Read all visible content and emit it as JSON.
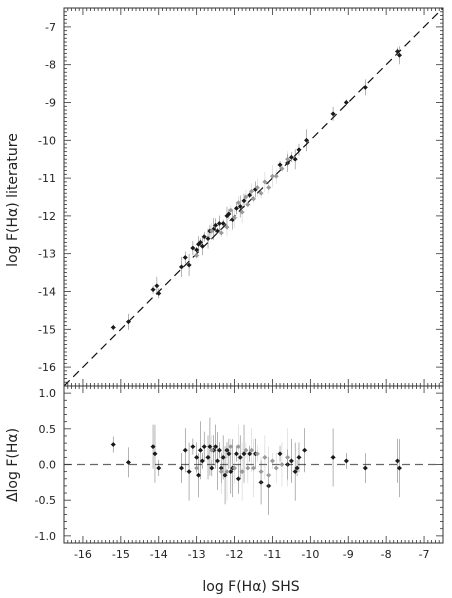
{
  "chart_data": [
    {
      "id": "top",
      "type": "scatter",
      "xlabel": "",
      "ylabel": "log F(Hα) literature",
      "xlim": [
        -16.5,
        -6.5
      ],
      "ylim": [
        -16.5,
        -6.5
      ],
      "x_ticks": [
        -16,
        -15,
        -14,
        -13,
        -12,
        -11,
        -10,
        -9,
        -8,
        -7
      ],
      "y_ticks": [
        -16,
        -15,
        -14,
        -13,
        -12,
        -11,
        -10,
        -9,
        -8,
        -7
      ],
      "show_x_tick_labels": false,
      "grid": false,
      "reference_line": {
        "style": "dashed",
        "points": [
          [
            -16.5,
            -16.5
          ],
          [
            -6.5,
            -6.5
          ]
        ]
      },
      "series": [
        {
          "color": "#1a1a1a",
          "points": [
            [
              -15.2,
              -14.95
            ],
            [
              -14.8,
              -14.8
            ],
            [
              -14.15,
              -13.95
            ],
            [
              -14.05,
              -13.85
            ],
            [
              -14.0,
              -14.05
            ],
            [
              -13.4,
              -13.35
            ],
            [
              -13.3,
              -13.1
            ],
            [
              -13.2,
              -13.3
            ],
            [
              -13.1,
              -12.85
            ],
            [
              -13.0,
              -12.9
            ],
            [
              -12.95,
              -12.75
            ],
            [
              -12.9,
              -12.7
            ],
            [
              -12.85,
              -12.8
            ],
            [
              -12.8,
              -12.55
            ],
            [
              -12.7,
              -12.6
            ],
            [
              -12.65,
              -12.4
            ],
            [
              -12.55,
              -12.35
            ],
            [
              -12.5,
              -12.25
            ],
            [
              -12.45,
              -12.4
            ],
            [
              -12.4,
              -12.2
            ],
            [
              -12.3,
              -12.2
            ],
            [
              -12.2,
              -12.0
            ],
            [
              -12.15,
              -11.95
            ],
            [
              -12.05,
              -12.1
            ],
            [
              -11.95,
              -11.8
            ],
            [
              -11.85,
              -11.75
            ],
            [
              -11.75,
              -11.6
            ],
            [
              -11.6,
              -11.45
            ],
            [
              -11.45,
              -11.3
            ],
            [
              -10.8,
              -10.65
            ],
            [
              -10.6,
              -10.6
            ],
            [
              -10.5,
              -10.45
            ],
            [
              -10.4,
              -10.5
            ],
            [
              -10.3,
              -10.25
            ],
            [
              -10.1,
              -10.0
            ],
            [
              -9.4,
              -9.3
            ],
            [
              -9.05,
              -9.0
            ],
            [
              -8.55,
              -8.6
            ],
            [
              -7.7,
              -7.65
            ],
            [
              -7.65,
              -7.75
            ]
          ]
        },
        {
          "color": "#9a9a9a",
          "points": [
            [
              -13.0,
              -13.05
            ],
            [
              -12.6,
              -12.4
            ],
            [
              -12.35,
              -12.45
            ],
            [
              -12.2,
              -12.3
            ],
            [
              -12.1,
              -11.85
            ],
            [
              -12.0,
              -12.05
            ],
            [
              -11.9,
              -11.65
            ],
            [
              -11.8,
              -11.9
            ],
            [
              -11.7,
              -11.5
            ],
            [
              -11.65,
              -11.7
            ],
            [
              -11.55,
              -11.35
            ],
            [
              -11.5,
              -11.55
            ],
            [
              -11.4,
              -11.25
            ],
            [
              -11.3,
              -11.4
            ],
            [
              -11.2,
              -11.1
            ],
            [
              -11.1,
              -11.25
            ],
            [
              -11.0,
              -10.95
            ],
            [
              -10.9,
              -10.95
            ],
            [
              -10.75,
              -10.75
            ],
            [
              -10.6,
              -10.5
            ]
          ]
        }
      ]
    },
    {
      "id": "bottom",
      "type": "scatter",
      "xlabel": "log F(Hα) SHS",
      "ylabel": "Δlog F(Hα)",
      "xlim": [
        -16.5,
        -6.5
      ],
      "ylim": [
        -1.1,
        1.1
      ],
      "x_ticks": [
        -16,
        -15,
        -14,
        -13,
        -12,
        -11,
        -10,
        -9,
        -8,
        -7
      ],
      "y_ticks": [
        -1.0,
        -0.5,
        0.0,
        0.5,
        1.0
      ],
      "show_x_tick_labels": true,
      "grid": false,
      "reference_line": {
        "style": "dashed",
        "points": [
          [
            -16.5,
            0.0
          ],
          [
            -6.5,
            0.0
          ]
        ]
      },
      "series": [
        {
          "color": "#1a1a1a",
          "points": [
            [
              -15.2,
              0.28
            ],
            [
              -14.8,
              0.03
            ],
            [
              -14.15,
              0.25
            ],
            [
              -14.1,
              0.15
            ],
            [
              -14.0,
              -0.05
            ],
            [
              -13.4,
              -0.05
            ],
            [
              -13.3,
              0.2
            ],
            [
              -13.2,
              -0.1
            ],
            [
              -13.1,
              0.25
            ],
            [
              -13.0,
              0.1
            ],
            [
              -12.95,
              -0.15
            ],
            [
              -12.9,
              0.2
            ],
            [
              -12.85,
              0.05
            ],
            [
              -12.8,
              0.25
            ],
            [
              -12.7,
              0.1
            ],
            [
              -12.65,
              0.25
            ],
            [
              -12.6,
              -0.05
            ],
            [
              -12.55,
              0.2
            ],
            [
              -12.5,
              0.25
            ],
            [
              -12.45,
              0.05
            ],
            [
              -12.4,
              0.2
            ],
            [
              -12.35,
              -0.05
            ],
            [
              -12.3,
              0.1
            ],
            [
              -12.25,
              -0.15
            ],
            [
              -12.2,
              0.2
            ],
            [
              -12.15,
              0.15
            ],
            [
              -12.1,
              -0.1
            ],
            [
              -12.05,
              -0.05
            ],
            [
              -11.95,
              0.15
            ],
            [
              -11.9,
              -0.2
            ],
            [
              -11.85,
              0.1
            ],
            [
              -11.75,
              0.15
            ],
            [
              -11.6,
              0.15
            ],
            [
              -11.45,
              0.15
            ],
            [
              -11.3,
              -0.25
            ],
            [
              -11.1,
              -0.3
            ],
            [
              -10.8,
              0.15
            ],
            [
              -10.6,
              0.0
            ],
            [
              -10.5,
              0.05
            ],
            [
              -10.4,
              -0.1
            ],
            [
              -10.35,
              -0.05
            ],
            [
              -10.3,
              0.1
            ],
            [
              -10.15,
              0.2
            ],
            [
              -9.4,
              0.1
            ],
            [
              -9.05,
              0.05
            ],
            [
              -8.55,
              -0.05
            ],
            [
              -7.7,
              0.05
            ],
            [
              -7.65,
              -0.05
            ]
          ]
        },
        {
          "color": "#9a9a9a",
          "points": [
            [
              -13.0,
              -0.05
            ],
            [
              -12.6,
              0.2
            ],
            [
              -12.35,
              -0.1
            ],
            [
              -12.2,
              -0.1
            ],
            [
              -12.1,
              0.25
            ],
            [
              -12.0,
              -0.05
            ],
            [
              -11.9,
              0.25
            ],
            [
              -11.8,
              -0.1
            ],
            [
              -11.7,
              0.2
            ],
            [
              -11.65,
              -0.05
            ],
            [
              -11.55,
              0.2
            ],
            [
              -11.5,
              -0.05
            ],
            [
              -11.4,
              0.15
            ],
            [
              -11.3,
              -0.1
            ],
            [
              -11.2,
              0.1
            ],
            [
              -11.1,
              -0.15
            ],
            [
              -11.0,
              0.05
            ],
            [
              -10.9,
              -0.05
            ],
            [
              -10.75,
              0.0
            ],
            [
              -10.6,
              0.1
            ]
          ]
        }
      ]
    }
  ]
}
